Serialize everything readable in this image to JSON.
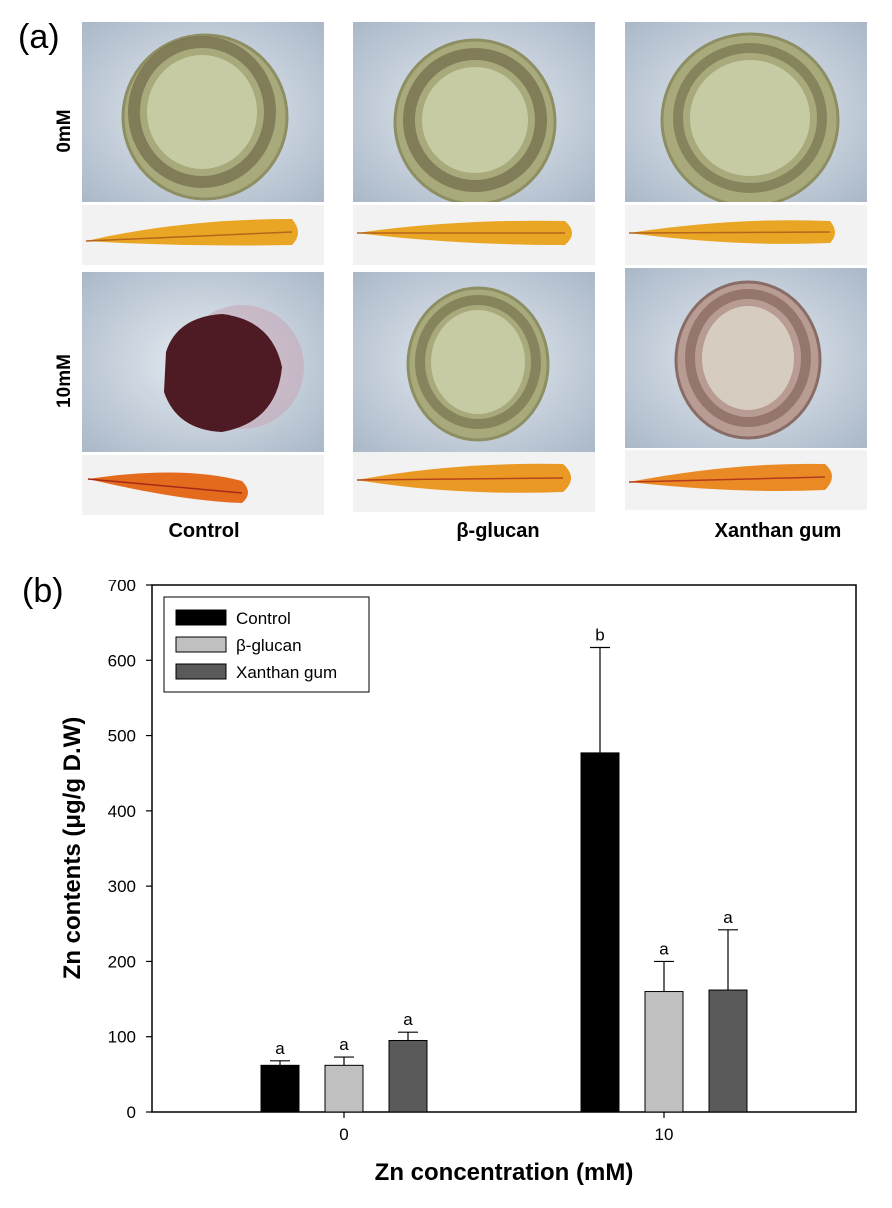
{
  "panel_a": {
    "label": "(a)",
    "row_labels": [
      "0mM",
      "10mM"
    ],
    "column_labels": [
      "Control",
      "β-glucan",
      "Xanthan gum"
    ]
  },
  "panel_b": {
    "label": "(b)"
  },
  "colors": {
    "control": "#000000",
    "beta_glucan": "#c0c0c0",
    "xanthan_gum": "#5a5a5a"
  },
  "chart_data": {
    "type": "bar",
    "xlabel": "Zn concentration (mM)",
    "ylabel": "Zn contents (μg/g D.W)",
    "ylim": [
      0,
      700
    ],
    "yticks": [
      0,
      100,
      200,
      300,
      400,
      500,
      600,
      700
    ],
    "categories": [
      "0",
      "10"
    ],
    "legend_position": "top-left",
    "series": [
      {
        "name": "Control",
        "values": [
          62,
          477
        ],
        "errors": [
          6,
          140
        ],
        "letters": [
          "a",
          "b"
        ]
      },
      {
        "name": "β-glucan",
        "values": [
          62,
          160
        ],
        "errors": [
          11,
          40
        ],
        "letters": [
          "a",
          "a"
        ]
      },
      {
        "name": "Xanthan gum",
        "values": [
          95,
          162
        ],
        "errors": [
          11,
          80
        ],
        "letters": [
          "a",
          "a"
        ]
      }
    ]
  }
}
